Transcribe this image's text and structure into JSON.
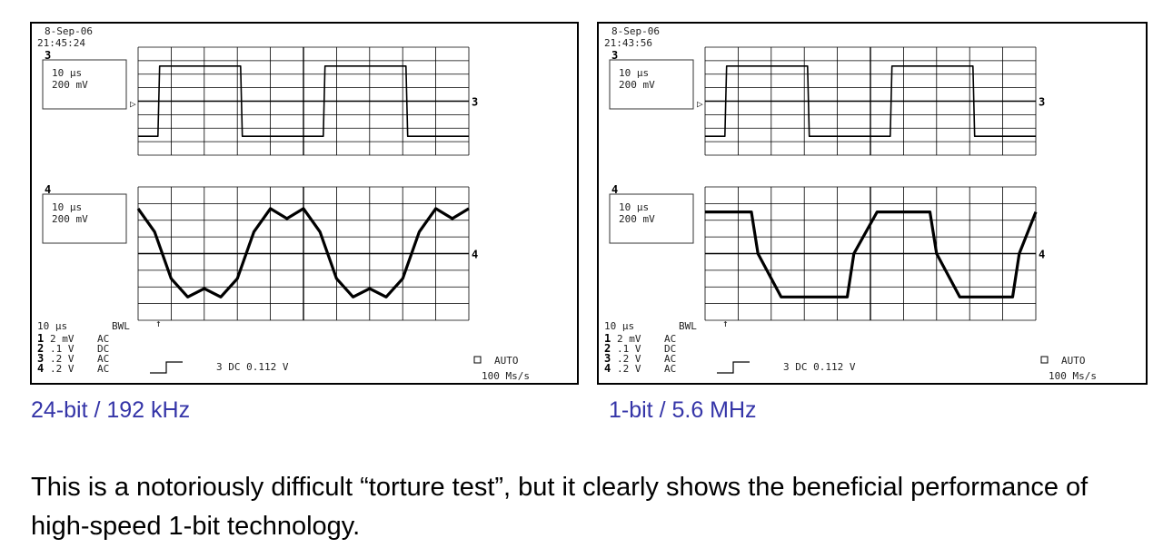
{
  "figure": {
    "scopes": [
      {
        "id": "left",
        "date": "8-Sep-06",
        "time": "21:45:24",
        "caption": "24-bit / 192 kHz",
        "upper_trace": {
          "channel": "3",
          "timebase": "10 µs",
          "volts": "200 mV",
          "marker": "3"
        },
        "lower_trace": {
          "channel": "4",
          "timebase": "10 µs",
          "volts": "200 mV",
          "marker": "4"
        },
        "bottom": {
          "timebase": "10 µs",
          "bwl": "BWL",
          "channels": [
            {
              "ch": "1",
              "scale": "2 mV",
              "coupling": "AC"
            },
            {
              "ch": "2",
              "scale": ".1  V",
              "coupling": "DC"
            },
            {
              "ch": "3",
              "scale": ".2  V",
              "coupling": "AC"
            },
            {
              "ch": "4",
              "scale": ".2  V",
              "coupling": "AC"
            }
          ],
          "trigger": "3 DC 0.112 V",
          "auto": "AUTO",
          "rate": "100 Ms/s"
        }
      },
      {
        "id": "right",
        "date": "8-Sep-06",
        "time": "21:43:56",
        "caption": "1-bit / 5.6 MHz",
        "upper_trace": {
          "channel": "3",
          "timebase": "10 µs",
          "volts": "200 mV",
          "marker": "3"
        },
        "lower_trace": {
          "channel": "4",
          "timebase": "10 µs",
          "volts": "200 mV",
          "marker": "4"
        },
        "bottom": {
          "timebase": "10 µs",
          "bwl": "BWL",
          "channels": [
            {
              "ch": "1",
              "scale": "2 mV",
              "coupling": "AC"
            },
            {
              "ch": "2",
              "scale": ".1  V",
              "coupling": "DC"
            },
            {
              "ch": "3",
              "scale": ".2  V",
              "coupling": "AC"
            },
            {
              "ch": "4",
              "scale": ".2  V",
              "coupling": "AC"
            }
          ],
          "trigger": "3 DC 0.112 V",
          "auto": "AUTO",
          "rate": "100 Ms/s"
        }
      }
    ]
  },
  "body_text": "This is a notoriously difficult “torture test”, but it clearly shows the beneficial performance of high-speed 1-bit technology.",
  "chart_data": [
    {
      "type": "line",
      "title": "",
      "xlabel": "",
      "ylabel": "",
      "x_divisions": 10,
      "y_divisions": 8,
      "grid": true,
      "series": [
        {
          "name": "3",
          "x": [
            0,
            0.6,
            0.65,
            3.1,
            3.15,
            5.6,
            5.65,
            8.1,
            8.15,
            10
          ],
          "y": [
            -2.6,
            -2.6,
            2.6,
            2.6,
            -2.6,
            -2.6,
            2.6,
            2.6,
            -2.6,
            -2.6
          ]
        },
        {
          "name": "4",
          "x": [
            0,
            0.5,
            1.0,
            1.5,
            2.0,
            2.5,
            3.0,
            3.5,
            4.0,
            4.5,
            5.0,
            5.5,
            6.0,
            6.5,
            7.0,
            7.5,
            8.0,
            8.5,
            9.0,
            9.5,
            10.0
          ],
          "y": [
            2.7,
            1.3,
            -1.5,
            -2.6,
            -2.1,
            -2.6,
            -1.5,
            1.3,
            2.7,
            2.1,
            2.7,
            1.3,
            -1.5,
            -2.6,
            -2.1,
            -2.6,
            -1.5,
            1.3,
            2.7,
            2.1,
            2.7
          ]
        }
      ]
    },
    {
      "type": "line",
      "title": "",
      "xlabel": "",
      "ylabel": "",
      "x_divisions": 10,
      "y_divisions": 8,
      "grid": true,
      "series": [
        {
          "name": "3",
          "x": [
            0,
            0.6,
            0.65,
            3.1,
            3.15,
            5.6,
            5.65,
            8.1,
            8.15,
            10
          ],
          "y": [
            -2.6,
            -2.6,
            2.6,
            2.6,
            -2.6,
            -2.6,
            2.6,
            2.6,
            -2.6,
            -2.6
          ]
        },
        {
          "name": "4",
          "x": [
            0,
            1.4,
            1.6,
            2.3,
            4.3,
            4.5,
            5.2,
            6.8,
            7.0,
            7.7,
            9.3,
            9.5,
            10.0
          ],
          "y": [
            2.5,
            2.5,
            0,
            -2.6,
            -2.6,
            0,
            2.5,
            2.5,
            0,
            -2.6,
            -2.6,
            0,
            2.5
          ]
        }
      ]
    }
  ]
}
